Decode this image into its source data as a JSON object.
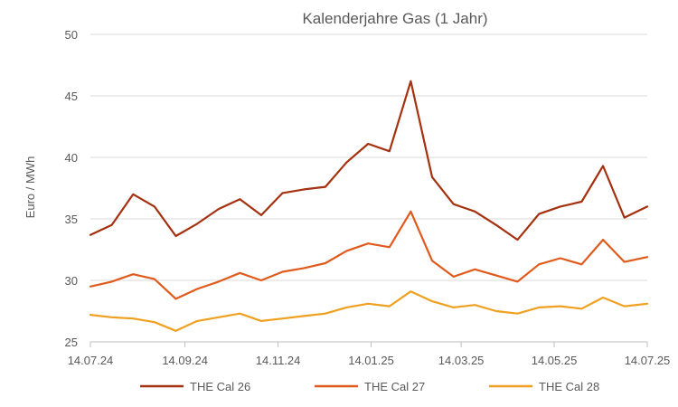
{
  "chart_data": {
    "type": "line",
    "title": "Kalenderjahre Gas (1 Jahr)",
    "xlabel": "",
    "ylabel": "Euro / MWh",
    "ylim": [
      25,
      50
    ],
    "yticks": [
      25,
      30,
      35,
      40,
      45,
      50
    ],
    "xlim": [
      "2024-07-14",
      "2025-07-14"
    ],
    "xticks": [
      "2024-07-14",
      "2024-09-14",
      "2024-11-14",
      "2025-01-14",
      "2025-03-14",
      "2025-05-14",
      "2025-07-14"
    ],
    "xtick_labels": [
      "14.07.24",
      "14.09.24",
      "14.11.24",
      "14.01.25",
      "14.03.25",
      "14.05.25",
      "14.07.25"
    ],
    "grid": "horizontal",
    "legend_position": "bottom",
    "x": [
      "2024-07-14",
      "2024-07-28",
      "2024-08-11",
      "2024-08-25",
      "2024-09-08",
      "2024-09-22",
      "2024-10-06",
      "2024-10-20",
      "2024-11-03",
      "2024-11-17",
      "2024-12-01",
      "2024-12-15",
      "2024-12-29",
      "2025-01-12",
      "2025-01-26",
      "2025-02-09",
      "2025-02-23",
      "2025-03-09",
      "2025-03-23",
      "2025-04-06",
      "2025-04-20",
      "2025-05-04",
      "2025-05-18",
      "2025-06-01",
      "2025-06-15",
      "2025-06-29",
      "2025-07-14"
    ],
    "series": [
      {
        "name": "THE Cal 26",
        "color": "#a4310f",
        "values": [
          33.7,
          34.5,
          37.0,
          36.0,
          33.6,
          34.6,
          35.8,
          36.6,
          35.3,
          37.1,
          37.4,
          37.6,
          39.6,
          41.1,
          40.5,
          46.2,
          38.4,
          36.2,
          35.6,
          34.5,
          33.3,
          35.4,
          36.0,
          36.4,
          39.3,
          35.1,
          36.0
        ]
      },
      {
        "name": "THE Cal 27",
        "color": "#e05a1b",
        "values": [
          29.5,
          29.9,
          30.5,
          30.1,
          28.5,
          29.3,
          29.9,
          30.6,
          30.0,
          30.7,
          31.0,
          31.4,
          32.4,
          33.0,
          32.7,
          35.6,
          31.6,
          30.3,
          30.9,
          30.4,
          29.9,
          31.3,
          31.8,
          31.3,
          33.3,
          31.5,
          31.9
        ]
      },
      {
        "name": "THE Cal 28",
        "color": "#f0a020",
        "values": [
          27.2,
          27.0,
          26.9,
          26.6,
          25.9,
          26.7,
          27.0,
          27.3,
          26.7,
          26.9,
          27.1,
          27.3,
          27.8,
          28.1,
          27.9,
          29.1,
          28.3,
          27.8,
          28.0,
          27.5,
          27.3,
          27.8,
          27.9,
          27.7,
          28.6,
          27.9,
          28.1
        ]
      }
    ]
  }
}
